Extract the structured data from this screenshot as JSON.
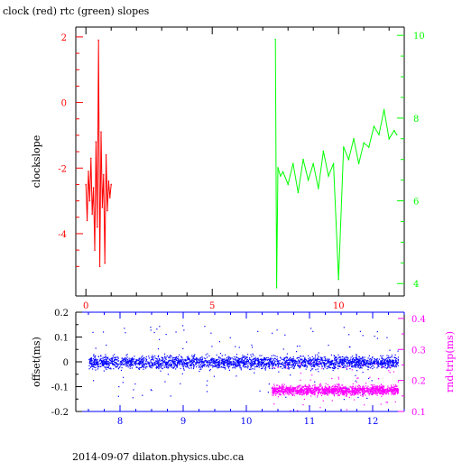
{
  "page": {
    "title": "clock (red) rtc (green) slopes",
    "footer": "2014-09-07 dilaton.physics.ubc.ca"
  },
  "chart_data": [
    {
      "type": "line",
      "title": "clock (red) rtc (green) slopes",
      "xlabel": "",
      "ylabel": "clockslope",
      "y2label": "",
      "xlim": [
        -0.4,
        12.6
      ],
      "ylim": [
        -5.9,
        2.3
      ],
      "y2lim": [
        3.7,
        10.2
      ],
      "x_ticks": [
        0,
        5,
        10
      ],
      "y_ticks": [
        -4,
        -2,
        0,
        2
      ],
      "y2_ticks": [
        4,
        6,
        8,
        10
      ],
      "colors": {
        "clock": "#ff0000",
        "rtc": "#00ff00",
        "axes": "#000000"
      },
      "series": [
        {
          "name": "clock",
          "axis": "left",
          "x": [
            0.0,
            0.05,
            0.1,
            0.15,
            0.2,
            0.25,
            0.3,
            0.35,
            0.4,
            0.45,
            0.5,
            0.55,
            0.6,
            0.65,
            0.7,
            0.75,
            0.8,
            0.85,
            0.9,
            0.95,
            1.0
          ],
          "y": [
            -2.5,
            -3.6,
            -2.1,
            -3.0,
            -1.7,
            -3.4,
            -2.6,
            -4.5,
            -1.2,
            -3.8,
            1.9,
            -5.0,
            -0.9,
            -3.2,
            -2.2,
            -4.9,
            -1.6,
            -3.3,
            -2.4,
            -2.9,
            -2.5
          ]
        },
        {
          "name": "rtc",
          "axis": "right",
          "x": [
            7.5,
            7.55,
            7.6,
            7.7,
            7.8,
            8.0,
            8.2,
            8.4,
            8.6,
            8.8,
            9.0,
            9.2,
            9.4,
            9.6,
            9.8,
            10.0,
            10.2,
            10.4,
            10.6,
            10.8,
            11.0,
            11.2,
            11.4,
            11.6,
            11.8,
            12.0,
            12.2,
            12.3
          ],
          "y": [
            9.9,
            3.9,
            6.8,
            6.6,
            6.7,
            6.4,
            6.9,
            6.2,
            7.0,
            6.5,
            6.9,
            6.3,
            7.2,
            6.6,
            6.9,
            4.1,
            7.3,
            7.0,
            7.5,
            6.9,
            7.4,
            7.3,
            7.8,
            7.6,
            8.2,
            7.5,
            7.7,
            7.6
          ]
        }
      ]
    },
    {
      "type": "scatter",
      "xlabel": "",
      "ylabel": "offset(ms)",
      "y2label": "rnd-trip(ms)",
      "xlim": [
        7.3,
        12.5
      ],
      "ylim": [
        -0.2,
        0.2
      ],
      "y2lim": [
        0.1,
        0.42
      ],
      "x_ticks": [
        8,
        9,
        10,
        11,
        12
      ],
      "y_ticks": [
        -0.2,
        -0.1,
        0,
        0.1,
        0.2
      ],
      "y2_ticks": [
        0.1,
        0.2,
        0.3,
        0.4
      ],
      "colors": {
        "offset": "#0000ff",
        "rtt": "#ff00ff"
      },
      "series": [
        {
          "name": "offset",
          "axis": "left",
          "x_range": [
            7.5,
            12.4
          ],
          "center": 0.0,
          "spread": 0.05
        },
        {
          "name": "rnd-trip",
          "axis": "right",
          "x_range": [
            10.4,
            12.4
          ],
          "center": 0.17,
          "spread": 0.03
        }
      ]
    }
  ]
}
